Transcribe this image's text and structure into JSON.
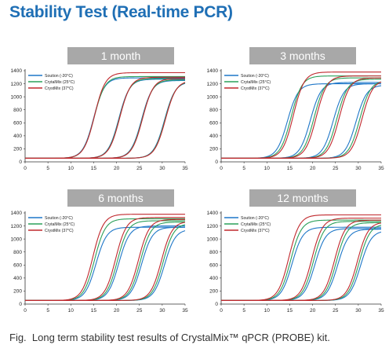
{
  "title": "Stability Test (Real-time PCR)",
  "caption": "Fig.  Long term stability test results of CrystalMix™ qPCR (PROBE) kit.",
  "chart_data": [
    {
      "type": "line",
      "title": "1 month",
      "xlim": [
        0,
        35
      ],
      "ylim": [
        0,
        1400
      ],
      "xticks": [
        0,
        5,
        10,
        15,
        20,
        25,
        30,
        35
      ],
      "yticks": [
        0,
        200,
        400,
        600,
        800,
        1000,
        1200,
        1400
      ],
      "legend": "top-left",
      "series": [
        {
          "name": "Soution (-20°C)",
          "color": "#1f77c8",
          "midpoints": [
            15,
            20.5,
            25.5,
            30.5
          ],
          "plateaus": [
            1290,
            1270,
            1250,
            1230
          ]
        },
        {
          "name": "CrytalMix (25°C)",
          "color": "#2ca05a",
          "midpoints": [
            15.1,
            20.6,
            25.6,
            30.6
          ],
          "plateaus": [
            1310,
            1280,
            1260,
            1240
          ]
        },
        {
          "name": "CrystMix (37°C)",
          "color": "#c0282d",
          "midpoints": [
            15.2,
            20.7,
            25.7,
            30.7
          ],
          "plateaus": [
            1370,
            1300,
            1280,
            1250
          ]
        }
      ]
    },
    {
      "type": "line",
      "title": "3 months",
      "xlim": [
        0,
        35
      ],
      "ylim": [
        0,
        1400
      ],
      "xticks": [
        0,
        5,
        10,
        15,
        20,
        25,
        30,
        35
      ],
      "yticks": [
        0,
        200,
        400,
        600,
        800,
        1000,
        1200,
        1400
      ],
      "legend": "top-left",
      "series": [
        {
          "name": "Soution (-20°C)",
          "color": "#1f77c8",
          "midpoints": [
            14.5,
            19.5,
            24.5,
            29.5
          ],
          "plateaus": [
            1200,
            1220,
            1200,
            1180
          ]
        },
        {
          "name": "CrytalMix (25°C)",
          "color": "#2ca05a",
          "midpoints": [
            15.3,
            20.3,
            25.3,
            30.3
          ],
          "plateaus": [
            1320,
            1290,
            1270,
            1250
          ]
        },
        {
          "name": "CrystMix (37°C)",
          "color": "#c0282d",
          "midpoints": [
            15.8,
            20.8,
            25.8,
            30.8
          ],
          "plateaus": [
            1380,
            1320,
            1290,
            1260
          ]
        }
      ]
    },
    {
      "type": "line",
      "title": "6 months",
      "xlim": [
        0,
        35
      ],
      "ylim": [
        0,
        1400
      ],
      "xticks": [
        0,
        5,
        10,
        15,
        20,
        25,
        30,
        35
      ],
      "yticks": [
        0,
        200,
        400,
        600,
        800,
        1000,
        1200,
        1400
      ],
      "legend": "top-left",
      "series": [
        {
          "name": "Soution (-20°C)",
          "color": "#1f77c8",
          "midpoints": [
            15.5,
            20.5,
            25.5,
            30.5
          ],
          "plateaus": [
            1180,
            1200,
            1180,
            1150
          ]
        },
        {
          "name": "CrytalMix (25°C)",
          "color": "#2ca05a",
          "midpoints": [
            15.2,
            20.2,
            25.2,
            30.2
          ],
          "plateaus": [
            1310,
            1280,
            1260,
            1240
          ]
        },
        {
          "name": "CrystMix (37°C)",
          "color": "#c0282d",
          "midpoints": [
            14.8,
            19.8,
            24.8,
            29.8
          ],
          "plateaus": [
            1380,
            1330,
            1300,
            1270
          ]
        }
      ]
    },
    {
      "type": "line",
      "title": "12 months",
      "xlim": [
        0,
        35
      ],
      "ylim": [
        0,
        1400
      ],
      "xticks": [
        0,
        5,
        10,
        15,
        20,
        25,
        30,
        35
      ],
      "yticks": [
        0,
        200,
        400,
        600,
        800,
        1000,
        1200,
        1400
      ],
      "legend": "top-left",
      "series": [
        {
          "name": "Soution (-20°C)",
          "color": "#1f77c8",
          "midpoints": [
            15.5,
            20.5,
            25.5,
            30.5
          ],
          "plateaus": [
            1180,
            1160,
            1150,
            1130
          ]
        },
        {
          "name": "CrytalMix (25°C)",
          "color": "#2ca05a",
          "midpoints": [
            15.2,
            20.2,
            25.2,
            30.2
          ],
          "plateaus": [
            1290,
            1270,
            1250,
            1230
          ]
        },
        {
          "name": "CrystMix (37°C)",
          "color": "#c0282d",
          "midpoints": [
            14.8,
            19.8,
            24.8,
            29.8
          ],
          "plateaus": [
            1370,
            1320,
            1290,
            1260
          ]
        }
      ]
    }
  ]
}
